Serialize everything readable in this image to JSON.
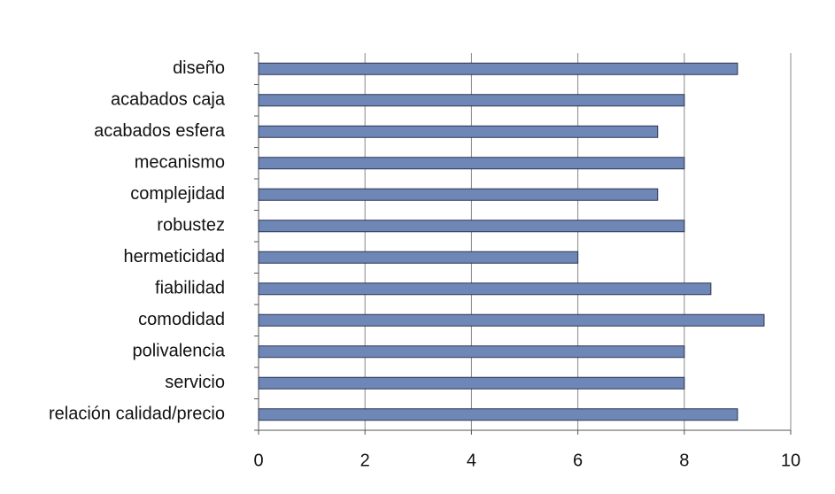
{
  "chart_data": {
    "type": "bar",
    "orientation": "horizontal",
    "categories": [
      "diseño",
      "acabados caja",
      "acabados esfera",
      "mecanismo",
      "complejidad",
      "robustez",
      "hermeticidad",
      "fiabilidad",
      "comodidad",
      "polivalencia",
      "servicio",
      "relación calidad/precio"
    ],
    "values": [
      9,
      8,
      7.5,
      8,
      7.5,
      8,
      6,
      8.5,
      9.5,
      8,
      8,
      9
    ],
    "color": "#6f87b7",
    "xlim": [
      0,
      10
    ],
    "xticks": [
      0,
      2,
      4,
      6,
      8,
      10
    ],
    "grid": true
  }
}
